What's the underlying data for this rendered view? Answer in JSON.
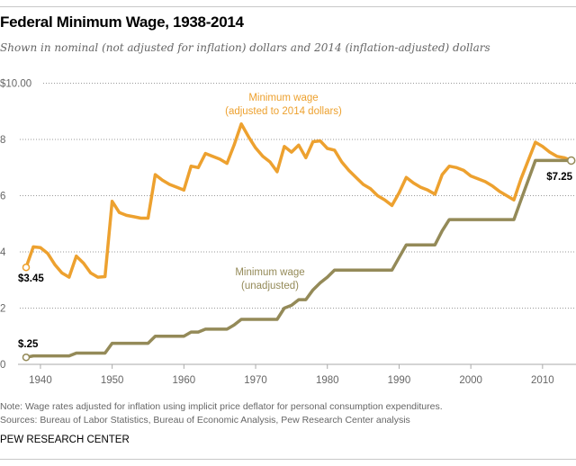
{
  "title": "Federal Minimum Wage, 1938-2014",
  "subtitle": "Shown in nominal (not adjusted for inflation) dollars and 2014 (inflation-adjusted) dollars",
  "note": "Note: Wage rates adjusted for inflation using implicit price deflator for personal consumption expenditures.",
  "sources": "Sources: Bureau of Labor Statistics, Bureau of Economic Analysis, Pew Research Center analysis",
  "brand": "PEW RESEARCH CENTER",
  "chart_data": {
    "type": "line",
    "title": "Federal Minimum Wage, 1938-2014",
    "xlim": [
      1938,
      2014
    ],
    "ylim": [
      0,
      10
    ],
    "grid": true,
    "x_ticks": [
      "1940",
      "1950",
      "1960",
      "1970",
      "1980",
      "1990",
      "2000",
      "2010"
    ],
    "y_ticks": [
      "0",
      "2",
      "4",
      "6",
      "8",
      "$10.00"
    ],
    "colors": {
      "adjusted": "#eda12f",
      "nominal": "#948a58"
    },
    "series": [
      {
        "name": "Minimum wage",
        "name2": "(adjusted to 2014 dollars)",
        "start_label": "$3.45",
        "end_label": "",
        "points": [
          [
            1938,
            3.45
          ],
          [
            1939,
            4.18
          ],
          [
            1940,
            4.15
          ],
          [
            1941,
            3.95
          ],
          [
            1942,
            3.55
          ],
          [
            1943,
            3.25
          ],
          [
            1944,
            3.1
          ],
          [
            1945,
            3.85
          ],
          [
            1946,
            3.6
          ],
          [
            1947,
            3.25
          ],
          [
            1948,
            3.1
          ],
          [
            1949,
            3.12
          ],
          [
            1950,
            5.8
          ],
          [
            1951,
            5.4
          ],
          [
            1952,
            5.3
          ],
          [
            1953,
            5.25
          ],
          [
            1954,
            5.2
          ],
          [
            1955,
            5.2
          ],
          [
            1956,
            6.75
          ],
          [
            1957,
            6.55
          ],
          [
            1958,
            6.4
          ],
          [
            1959,
            6.3
          ],
          [
            1960,
            6.2
          ],
          [
            1961,
            7.05
          ],
          [
            1962,
            7.0
          ],
          [
            1963,
            7.5
          ],
          [
            1964,
            7.4
          ],
          [
            1965,
            7.3
          ],
          [
            1966,
            7.15
          ],
          [
            1967,
            7.8
          ],
          [
            1968,
            8.55
          ],
          [
            1969,
            8.1
          ],
          [
            1970,
            7.7
          ],
          [
            1971,
            7.4
          ],
          [
            1972,
            7.2
          ],
          [
            1973,
            6.85
          ],
          [
            1974,
            7.75
          ],
          [
            1975,
            7.55
          ],
          [
            1976,
            7.8
          ],
          [
            1977,
            7.35
          ],
          [
            1978,
            7.92
          ],
          [
            1979,
            7.95
          ],
          [
            1980,
            7.68
          ],
          [
            1981,
            7.62
          ],
          [
            1982,
            7.2
          ],
          [
            1983,
            6.9
          ],
          [
            1984,
            6.65
          ],
          [
            1985,
            6.4
          ],
          [
            1986,
            6.25
          ],
          [
            1987,
            6.0
          ],
          [
            1988,
            5.85
          ],
          [
            1989,
            5.65
          ],
          [
            1990,
            6.1
          ],
          [
            1991,
            6.65
          ],
          [
            1992,
            6.45
          ],
          [
            1993,
            6.3
          ],
          [
            1994,
            6.2
          ],
          [
            1995,
            6.05
          ],
          [
            1996,
            6.75
          ],
          [
            1997,
            7.05
          ],
          [
            1998,
            7.0
          ],
          [
            1999,
            6.9
          ],
          [
            2000,
            6.7
          ],
          [
            2001,
            6.6
          ],
          [
            2002,
            6.5
          ],
          [
            2003,
            6.35
          ],
          [
            2004,
            6.15
          ],
          [
            2005,
            6.0
          ],
          [
            2006,
            5.85
          ],
          [
            2007,
            6.6
          ],
          [
            2008,
            7.25
          ],
          [
            2009,
            7.9
          ],
          [
            2010,
            7.75
          ],
          [
            2011,
            7.55
          ],
          [
            2012,
            7.4
          ],
          [
            2013,
            7.35
          ],
          [
            2014,
            7.25
          ]
        ]
      },
      {
        "name": "Minimum wage",
        "name2": "(unadjusted)",
        "start_label": "$.25",
        "end_label": "$7.25",
        "points": [
          [
            1938,
            0.25
          ],
          [
            1939,
            0.3
          ],
          [
            1944,
            0.3
          ],
          [
            1945,
            0.4
          ],
          [
            1949,
            0.4
          ],
          [
            1950,
            0.75
          ],
          [
            1955,
            0.75
          ],
          [
            1956,
            1.0
          ],
          [
            1960,
            1.0
          ],
          [
            1961,
            1.15
          ],
          [
            1962,
            1.15
          ],
          [
            1963,
            1.25
          ],
          [
            1966,
            1.25
          ],
          [
            1967,
            1.4
          ],
          [
            1968,
            1.6
          ],
          [
            1973,
            1.6
          ],
          [
            1974,
            2.0
          ],
          [
            1975,
            2.1
          ],
          [
            1976,
            2.3
          ],
          [
            1977,
            2.3
          ],
          [
            1978,
            2.65
          ],
          [
            1979,
            2.9
          ],
          [
            1980,
            3.1
          ],
          [
            1981,
            3.35
          ],
          [
            1989,
            3.35
          ],
          [
            1990,
            3.8
          ],
          [
            1991,
            4.25
          ],
          [
            1995,
            4.25
          ],
          [
            1996,
            4.75
          ],
          [
            1997,
            5.15
          ],
          [
            2006,
            5.15
          ],
          [
            2007,
            5.85
          ],
          [
            2008,
            6.55
          ],
          [
            2009,
            7.25
          ],
          [
            2014,
            7.25
          ]
        ]
      }
    ]
  }
}
